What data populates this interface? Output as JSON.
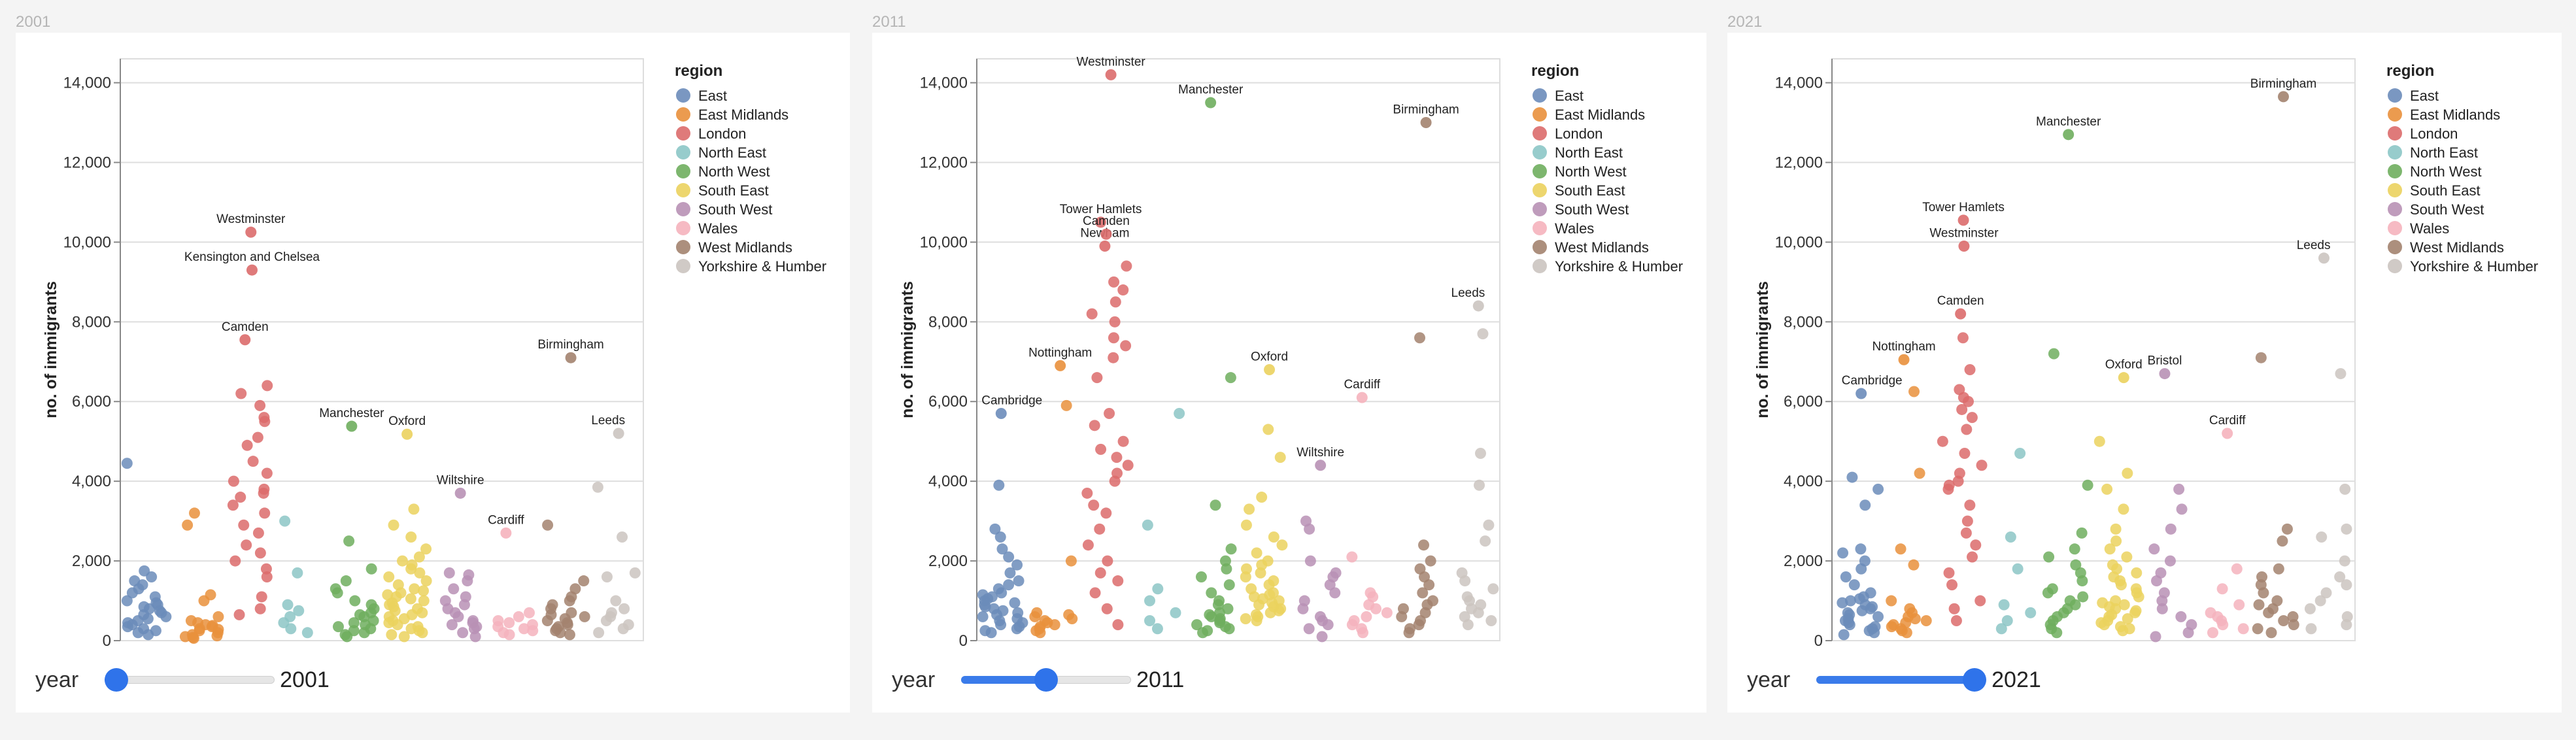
{
  "regions": [
    {
      "name": "East",
      "color": "#6b8cba"
    },
    {
      "name": "East Midlands",
      "color": "#e9903c"
    },
    {
      "name": "London",
      "color": "#dc6b6b"
    },
    {
      "name": "North East",
      "color": "#8cc6c6"
    },
    {
      "name": "North West",
      "color": "#6fae5e"
    },
    {
      "name": "South East",
      "color": "#ebd25e"
    },
    {
      "name": "South West",
      "color": "#b891b5"
    },
    {
      "name": "Wales",
      "color": "#f5b3bd"
    },
    {
      "name": "West Midlands",
      "color": "#a3836f"
    },
    {
      "name": "Yorkshire & Humber",
      "color": "#cbc4c0"
    }
  ],
  "chart_data": [
    {
      "type": "scatter",
      "caption": "2001",
      "ylabel": "no. of immigrants",
      "y_ticks": [
        "0",
        "2,000",
        "4,000",
        "6,000",
        "8,000",
        "10,000",
        "12,000",
        "14,000"
      ],
      "ylim": [
        0,
        14600
      ],
      "grid": true,
      "legend_title": "region",
      "legend_position": "right",
      "slider": {
        "label": "year",
        "value": "2001",
        "position": 0
      },
      "labeled_points": [
        {
          "region": "London",
          "label": "Westminster",
          "y": 10250
        },
        {
          "region": "London",
          "label": "Kensington and Chelsea",
          "y": 9300
        },
        {
          "region": "London",
          "label": "Camden",
          "y": 7550
        },
        {
          "region": "North West",
          "label": "Manchester",
          "y": 5380
        },
        {
          "region": "South East",
          "label": "Oxford",
          "y": 5180
        },
        {
          "region": "South West",
          "label": "Wiltshire",
          "y": 3700
        },
        {
          "region": "Wales",
          "label": "Cardiff",
          "y": 2700
        },
        {
          "region": "West Midlands",
          "label": "Birmingham",
          "y": 7100
        },
        {
          "region": "Yorkshire & Humber",
          "label": "Leeds",
          "y": 5200
        }
      ],
      "series": [
        {
          "region": "East",
          "values": [
            1750,
            1600,
            1500,
            1400,
            1200,
            1000,
            900,
            800,
            700,
            600,
            500,
            400,
            300,
            250,
            200,
            150,
            1300,
            1100,
            950,
            850,
            750,
            650,
            550,
            450,
            350,
            4450
          ]
        },
        {
          "region": "East Midlands",
          "values": [
            1150,
            600,
            500,
            450,
            400,
            350,
            300,
            250,
            200,
            150,
            120,
            100,
            80,
            60,
            380,
            280,
            2900,
            3200,
            1000
          ]
        },
        {
          "region": "London",
          "values": [
            6400,
            6200,
            5900,
            5600,
            5500,
            5100,
            4900,
            4500,
            4200,
            4000,
            3800,
            3700,
            3600,
            3400,
            3200,
            2900,
            2700,
            2400,
            2200,
            2000,
            1800,
            1600,
            1100,
            800,
            650
          ]
        },
        {
          "region": "North East",
          "values": [
            3000,
            1700,
            900,
            750,
            600,
            450,
            300,
            200
          ]
        },
        {
          "region": "North West",
          "values": [
            2500,
            1800,
            1200,
            1000,
            900,
            800,
            700,
            650,
            600,
            500,
            450,
            400,
            350,
            300,
            250,
            200,
            150,
            100,
            1500,
            1300
          ]
        },
        {
          "region": "South East",
          "values": [
            3300,
            2900,
            2600,
            2300,
            2100,
            2000,
            1900,
            1800,
            1700,
            1600,
            1500,
            1400,
            1300,
            1200,
            1100,
            1000,
            950,
            900,
            850,
            800,
            750,
            700,
            650,
            600,
            550,
            500,
            450,
            400,
            350,
            300,
            250,
            200,
            150,
            100,
            1250,
            1150,
            1050
          ]
        },
        {
          "region": "South West",
          "values": [
            1700,
            1650,
            1500,
            1300,
            1100,
            1000,
            900,
            800,
            700,
            600,
            500,
            450,
            400,
            350,
            300,
            200,
            100
          ]
        },
        {
          "region": "Wales",
          "values": [
            700,
            600,
            500,
            450,
            400,
            350,
            300,
            250,
            200,
            150
          ]
        },
        {
          "region": "West Midlands",
          "values": [
            2900,
            1500,
            1300,
            1100,
            1000,
            900,
            800,
            700,
            650,
            600,
            550,
            500,
            450,
            400,
            350,
            300,
            250,
            200,
            150
          ]
        },
        {
          "region": "Yorkshire & Humber",
          "values": [
            3850,
            2600,
            1700,
            1600,
            1000,
            800,
            700,
            600,
            500,
            400,
            300,
            200
          ]
        }
      ]
    },
    {
      "type": "scatter",
      "caption": "2011",
      "ylabel": "no. of immigrants",
      "y_ticks": [
        "0",
        "2,000",
        "4,000",
        "6,000",
        "8,000",
        "10,000",
        "12,000",
        "14,000"
      ],
      "ylim": [
        0,
        14600
      ],
      "grid": true,
      "legend_title": "region",
      "legend_position": "right",
      "slider": {
        "label": "year",
        "value": "2011",
        "position": 0.5
      },
      "labeled_points": [
        {
          "region": "London",
          "label": "Westminster",
          "y": 14200
        },
        {
          "region": "London",
          "label": "Tower Hamlets",
          "y": 10500
        },
        {
          "region": "London",
          "label": "Newham",
          "y": 9900
        },
        {
          "region": "London",
          "label": "Camden",
          "y": 10200
        },
        {
          "region": "North West",
          "label": "Manchester",
          "y": 13500
        },
        {
          "region": "West Midlands",
          "label": "Birmingham",
          "y": 13000
        },
        {
          "region": "East",
          "label": "Cambridge",
          "y": 5700
        },
        {
          "region": "East Midlands",
          "label": "Nottingham",
          "y": 6900
        },
        {
          "region": "South East",
          "label": "Oxford",
          "y": 6800
        },
        {
          "region": "Wales",
          "label": "Cardiff",
          "y": 6100
        },
        {
          "region": "South West",
          "label": "Wiltshire",
          "y": 4400
        },
        {
          "region": "Yorkshire & Humber",
          "label": "Leeds",
          "y": 8400
        }
      ],
      "series": [
        {
          "region": "East",
          "values": [
            3900,
            2800,
            2600,
            2300,
            2100,
            1900,
            1700,
            1500,
            1400,
            1300,
            1200,
            1100,
            1000,
            950,
            900,
            850,
            800,
            750,
            700,
            650,
            600,
            550,
            500,
            450,
            400,
            350,
            300,
            250,
            200,
            1150,
            1050
          ]
        },
        {
          "region": "East Midlands",
          "values": [
            5900,
            2000,
            700,
            600,
            550,
            500,
            450,
            400,
            350,
            300,
            250,
            200,
            650
          ]
        },
        {
          "region": "London",
          "values": [
            9400,
            9000,
            8800,
            8500,
            8200,
            8000,
            7600,
            7400,
            7100,
            6600,
            5700,
            5400,
            5000,
            4800,
            4600,
            4400,
            4200,
            4000,
            3700,
            3400,
            3200,
            2800,
            2400,
            2000,
            1700,
            1500,
            1200,
            800,
            400
          ]
        },
        {
          "region": "North East",
          "values": [
            5700,
            2900,
            1300,
            1000,
            700,
            500,
            300
          ]
        },
        {
          "region": "North West",
          "values": [
            6600,
            3400,
            2300,
            2000,
            1800,
            1600,
            1400,
            1200,
            1000,
            900,
            800,
            700,
            650,
            600,
            550,
            500,
            450,
            400,
            350,
            300,
            250,
            200
          ]
        },
        {
          "region": "South East",
          "values": [
            5300,
            4600,
            3600,
            3300,
            2900,
            2600,
            2400,
            2200,
            2000,
            1900,
            1800,
            1700,
            1600,
            1500,
            1400,
            1300,
            1200,
            1150,
            1100,
            1050,
            1000,
            950,
            900,
            850,
            800,
            750,
            700,
            650,
            600,
            550,
            500
          ]
        },
        {
          "region": "South West",
          "values": [
            3000,
            2800,
            2000,
            1700,
            1600,
            1400,
            1200,
            1000,
            800,
            600,
            500,
            400,
            300,
            100
          ]
        },
        {
          "region": "Wales",
          "values": [
            2100,
            1200,
            1100,
            900,
            800,
            700,
            600,
            500,
            400,
            300,
            200
          ]
        },
        {
          "region": "West Midlands",
          "values": [
            7600,
            2400,
            2000,
            1800,
            1600,
            1400,
            1200,
            1000,
            900,
            800,
            700,
            600,
            500,
            400,
            300,
            200
          ]
        },
        {
          "region": "Yorkshire & Humber",
          "values": [
            7700,
            4700,
            3900,
            2900,
            2500,
            1700,
            1500,
            1300,
            1100,
            1000,
            900,
            800,
            700,
            600,
            500,
            400
          ]
        }
      ]
    },
    {
      "type": "scatter",
      "caption": "2021",
      "ylabel": "no. of immigrants",
      "y_ticks": [
        "0",
        "2,000",
        "4,000",
        "6,000",
        "8,000",
        "10,000",
        "12,000",
        "14,000"
      ],
      "ylim": [
        0,
        14600
      ],
      "grid": true,
      "legend_title": "region",
      "legend_position": "right",
      "slider": {
        "label": "year",
        "value": "2021",
        "position": 1
      },
      "labeled_points": [
        {
          "region": "West Midlands",
          "label": "Birmingham",
          "y": 13650
        },
        {
          "region": "North West",
          "label": "Manchester",
          "y": 12700
        },
        {
          "region": "London",
          "label": "Tower Hamlets",
          "y": 10550
        },
        {
          "region": "London",
          "label": "Westminster",
          "y": 9900
        },
        {
          "region": "London",
          "label": "Camden",
          "y": 8200
        },
        {
          "region": "East Midlands",
          "label": "Nottingham",
          "y": 7050
        },
        {
          "region": "East",
          "label": "Cambridge",
          "y": 6200
        },
        {
          "region": "South East",
          "label": "Oxford",
          "y": 6600
        },
        {
          "region": "South West",
          "label": "Bristol",
          "y": 6700
        },
        {
          "region": "Wales",
          "label": "Cardiff",
          "y": 5200
        },
        {
          "region": "Yorkshire & Humber",
          "label": "Leeds",
          "y": 9600
        }
      ],
      "series": [
        {
          "region": "East",
          "values": [
            4100,
            3800,
            3400,
            2300,
            2200,
            2000,
            1800,
            1600,
            1400,
            1200,
            1100,
            1000,
            900,
            850,
            800,
            750,
            700,
            650,
            600,
            550,
            500,
            450,
            400,
            350,
            300,
            250,
            200,
            150,
            950,
            1050
          ]
        },
        {
          "region": "East Midlands",
          "values": [
            6250,
            4200,
            2300,
            1900,
            1000,
            800,
            700,
            600,
            550,
            500,
            450,
            400,
            350,
            300,
            250,
            200
          ]
        },
        {
          "region": "London",
          "values": [
            7600,
            6800,
            6300,
            6100,
            6000,
            5800,
            5600,
            5300,
            5000,
            4700,
            4400,
            4200,
            4000,
            3900,
            3800,
            3400,
            3000,
            2700,
            2400,
            2100,
            1700,
            1400,
            1000,
            800,
            500
          ]
        },
        {
          "region": "North East",
          "values": [
            4700,
            2600,
            1800,
            900,
            700,
            500,
            300
          ]
        },
        {
          "region": "North West",
          "values": [
            7200,
            3900,
            2700,
            2300,
            2100,
            1900,
            1700,
            1500,
            1300,
            1200,
            1100,
            1000,
            900,
            800,
            700,
            600,
            500,
            400,
            300,
            200
          ]
        },
        {
          "region": "South East",
          "values": [
            5000,
            4200,
            3800,
            3300,
            2800,
            2500,
            2300,
            2100,
            1900,
            1800,
            1700,
            1600,
            1500,
            1400,
            1300,
            1200,
            1100,
            1000,
            950,
            900,
            850,
            800,
            750,
            700,
            650,
            600,
            550,
            500,
            450,
            400,
            350,
            300,
            250
          ]
        },
        {
          "region": "South West",
          "values": [
            3800,
            3300,
            2800,
            2300,
            2000,
            1700,
            1500,
            1200,
            1000,
            800,
            600,
            400,
            200,
            100
          ]
        },
        {
          "region": "Wales",
          "values": [
            1800,
            1300,
            900,
            700,
            600,
            500,
            400,
            300,
            200
          ]
        },
        {
          "region": "West Midlands",
          "values": [
            7100,
            2800,
            2500,
            1800,
            1600,
            1400,
            1200,
            1000,
            900,
            800,
            700,
            600,
            500,
            400,
            300,
            200
          ]
        },
        {
          "region": "Yorkshire & Humber",
          "values": [
            6700,
            3800,
            2800,
            2600,
            2000,
            1600,
            1400,
            1200,
            1000,
            800,
            600,
            400,
            300
          ]
        }
      ]
    }
  ]
}
